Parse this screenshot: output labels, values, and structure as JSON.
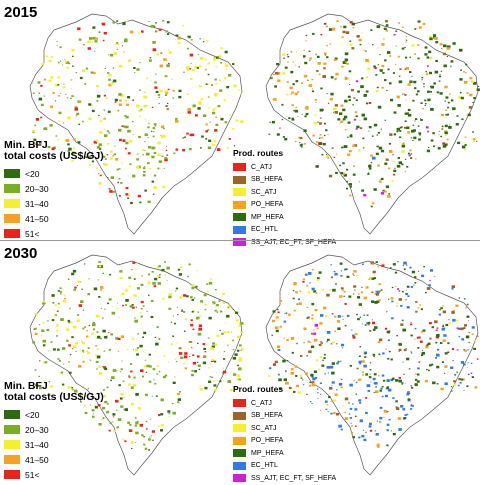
{
  "panels": [
    {
      "year": "2015"
    },
    {
      "year": "2030"
    }
  ],
  "cost_legend": {
    "title_line1": "Min. BFJ",
    "title_line2": "total costs (US$/GJ)",
    "items": [
      {
        "label": "<20",
        "color": "#2e6b0f"
      },
      {
        "label": "20–30",
        "color": "#7cad26"
      },
      {
        "label": "31–40",
        "color": "#f4f12c"
      },
      {
        "label": "41–50",
        "color": "#f4a21f"
      },
      {
        "label": "51<",
        "color": "#e8231a"
      }
    ]
  },
  "route_legend": {
    "title": "Prod. routes",
    "items": [
      {
        "label": "C_ATJ",
        "color": "#e8231a"
      },
      {
        "label": "SB_HEFA",
        "color": "#9b6526"
      },
      {
        "label": "SC_ATJ",
        "color": "#f4f12c"
      },
      {
        "label": "PO_HEFA",
        "color": "#f4a21f"
      },
      {
        "label": "MP_HEFA",
        "color": "#2e6b0f"
      },
      {
        "label": "EC_HTL",
        "color": "#2f7de0"
      },
      {
        "label": "SS_AJT, EC_FT, SF_HEFA",
        "color": "#d71cd7"
      }
    ]
  },
  "map_colors": {
    "outline": "#555555",
    "land": "#ffffff",
    "coast": "#1a1a1a"
  }
}
